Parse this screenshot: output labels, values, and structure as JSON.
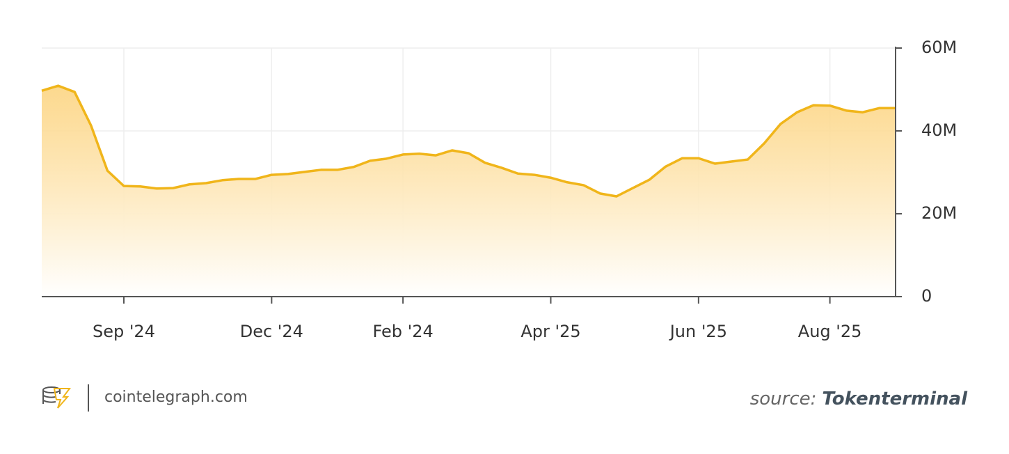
{
  "chart_data": {
    "type": "area",
    "categories": [
      null,
      null,
      null,
      null,
      null,
      "Sep '24",
      null,
      null,
      null,
      null,
      null,
      null,
      null,
      null,
      "Dec '24",
      null,
      null,
      null,
      null,
      null,
      null,
      null,
      "Feb '24",
      null,
      null,
      null,
      null,
      null,
      null,
      null,
      null,
      "Apr '25",
      null,
      null,
      null,
      null,
      null,
      null,
      null,
      null,
      "Jun '25",
      null,
      null,
      null,
      null,
      null,
      null,
      null,
      "Aug '25",
      null,
      null,
      null,
      null
    ],
    "series": [
      {
        "color": "#f0b51a",
        "values": [
          49.7,
          50.9,
          49.4,
          41.3,
          30.4,
          26.7,
          26.6,
          26.1,
          26.2,
          27.1,
          27.4,
          28.1,
          28.4,
          28.4,
          29.4,
          29.6,
          30.1,
          30.6,
          30.6,
          31.3,
          32.8,
          33.3,
          34.3,
          34.5,
          34.1,
          35.3,
          34.6,
          32.3,
          31.1,
          29.7,
          29.4,
          28.7,
          27.6,
          26.9,
          24.9,
          24.2,
          26.2,
          28.2,
          31.4,
          33.4,
          33.4,
          32.1,
          32.6,
          33.1,
          37.0,
          41.7,
          44.5,
          46.2,
          46.1,
          44.9,
          44.5,
          45.5,
          45.5
        ]
      }
    ],
    "ylim": [
      0,
      60
    ],
    "yticks": [
      0,
      {
        "value": 20,
        "label": "20M"
      },
      {
        "value": 40,
        "label": "40M"
      },
      {
        "value": 60,
        "label": "60M"
      }
    ],
    "grid": true
  },
  "footer": {
    "site": "cointelegraph.com",
    "source_label": "source:",
    "source_name": "Tokenterminal"
  }
}
